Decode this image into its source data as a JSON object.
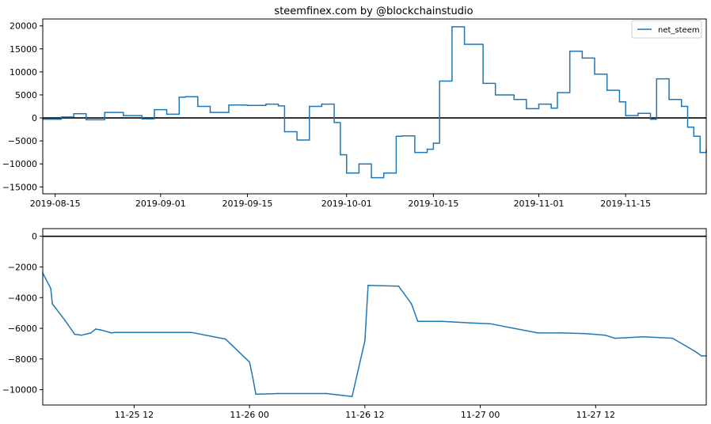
{
  "title": "steemfinex.com by @blockchainstudio",
  "colors": {
    "series": "#1f77b4",
    "zero_line": "#000000",
    "axes": "#000000",
    "background": "#ffffff"
  },
  "chart_data": [
    {
      "type": "line",
      "title": "steemfinex.com by @blockchainstudio",
      "xlabel": "",
      "ylabel": "",
      "x_type": "date",
      "xlim": [
        "2019-08-13",
        "2019-11-28"
      ],
      "ylim": [
        -16500,
        21500
      ],
      "grid": false,
      "legend": "top-right",
      "xtick_labels": [
        "2019-08-15",
        "2019-09-01",
        "2019-09-15",
        "2019-10-01",
        "2019-10-15",
        "2019-11-01",
        "2019-11-15"
      ],
      "xticks": [
        "2019-08-15",
        "2019-09-01",
        "2019-09-15",
        "2019-10-01",
        "2019-10-15",
        "2019-11-01",
        "2019-11-15"
      ],
      "ytick_labels": [
        "20000",
        "15000",
        "10000",
        "5000",
        "0",
        "−5000",
        "−10000",
        "−15000"
      ],
      "yticks": [
        20000,
        15000,
        10000,
        5000,
        0,
        -5000,
        -10000,
        -15000
      ],
      "hline": 0,
      "series": [
        {
          "name": "net_steem",
          "x": [
            "2019-08-13",
            "2019-08-16",
            "2019-08-18",
            "2019-08-20",
            "2019-08-23",
            "2019-08-26",
            "2019-08-29",
            "2019-08-31",
            "2019-09-02",
            "2019-09-04",
            "2019-09-05",
            "2019-09-07",
            "2019-09-09",
            "2019-09-12",
            "2019-09-15",
            "2019-09-18",
            "2019-09-20",
            "2019-09-21",
            "2019-09-23",
            "2019-09-25",
            "2019-09-27",
            "2019-09-29",
            "2019-09-30",
            "2019-10-01",
            "2019-10-03",
            "2019-10-05",
            "2019-10-07",
            "2019-10-09",
            "2019-10-10",
            "2019-10-12",
            "2019-10-14",
            "2019-10-15",
            "2019-10-16",
            "2019-10-18",
            "2019-10-20",
            "2019-10-23",
            "2019-10-25",
            "2019-10-28",
            "2019-10-30",
            "2019-11-01",
            "2019-11-03",
            "2019-11-04",
            "2019-11-06",
            "2019-11-08",
            "2019-11-10",
            "2019-11-12",
            "2019-11-14",
            "2019-11-15",
            "2019-11-17",
            "2019-11-19",
            "2019-11-20",
            "2019-11-22",
            "2019-11-24",
            "2019-11-25",
            "2019-11-26",
            "2019-11-27",
            "2019-11-28"
          ],
          "y": [
            -300,
            200,
            900,
            -400,
            1200,
            500,
            -200,
            1800,
            800,
            4500,
            4600,
            2500,
            1200,
            2800,
            2700,
            3000,
            2600,
            -3000,
            -4800,
            2500,
            3000,
            -1000,
            -8000,
            -12000,
            -10000,
            -13000,
            -12000,
            -4000,
            -3900,
            -7500,
            -6800,
            -5500,
            8000,
            19800,
            16000,
            7500,
            5000,
            4000,
            2000,
            3000,
            2100,
            5500,
            14500,
            13000,
            9500,
            6000,
            3500,
            500,
            1000,
            -300,
            8500,
            4000,
            2500,
            -2000,
            -4000,
            -7500,
            -7000
          ]
        }
      ]
    },
    {
      "type": "line",
      "xlabel": "",
      "ylabel": "",
      "x_type": "datetime",
      "xlim": [
        "2019-11-25 02:30",
        "2019-11-27 23:30"
      ],
      "ylim": [
        -11000,
        500
      ],
      "grid": false,
      "legend": "none",
      "xtick_labels": [
        "11-25 12",
        "11-26 00",
        "11-26 12",
        "11-27 00",
        "11-27 12"
      ],
      "xticks": [
        "2019-11-25 12:00",
        "2019-11-26 00:00",
        "2019-11-26 12:00",
        "2019-11-27 00:00",
        "2019-11-27 12:00"
      ],
      "ytick_labels": [
        "0",
        "−2000",
        "−4000",
        "−6000",
        "−8000",
        "−10000"
      ],
      "yticks": [
        0,
        -2000,
        -4000,
        -6000,
        -8000,
        -10000
      ],
      "hline": 0,
      "series": [
        {
          "name": "net_steem",
          "x": [
            "2019-11-25 02:30",
            "2019-11-25 03:20",
            "2019-11-25 03:30",
            "2019-11-25 04:50",
            "2019-11-25 05:50",
            "2019-11-25 06:00",
            "2019-11-25 06:30",
            "2019-11-25 07:30",
            "2019-11-25 08:00",
            "2019-11-25 08:30",
            "2019-11-25 09:40",
            "2019-11-25 10:00",
            "2019-11-25 18:00",
            "2019-11-25 21:30",
            "2019-11-26 00:00",
            "2019-11-26 00:20",
            "2019-11-26 00:40",
            "2019-11-26 03:00",
            "2019-11-26 08:00",
            "2019-11-26 10:40",
            "2019-11-26 12:00",
            "2019-11-26 12:20",
            "2019-11-26 15:30",
            "2019-11-26 16:50",
            "2019-11-26 17:30",
            "2019-11-26 20:00",
            "2019-11-26 23:00",
            "2019-11-27 01:00",
            "2019-11-27 06:00",
            "2019-11-27 08:30",
            "2019-11-27 11:00",
            "2019-11-27 13:00",
            "2019-11-27 14:00",
            "2019-11-27 17:00",
            "2019-11-27 20:00",
            "2019-11-27 22:20",
            "2019-11-27 23:00",
            "2019-11-27 23:30"
          ],
          "y": [
            -2400,
            -3400,
            -4400,
            -5500,
            -6400,
            -6400,
            -6450,
            -6300,
            -6050,
            -6100,
            -6300,
            -6270,
            -6270,
            -6700,
            -8200,
            -9200,
            -10300,
            -10250,
            -10250,
            -10450,
            -6800,
            -3200,
            -3250,
            -4400,
            -5550,
            -5550,
            -5650,
            -5700,
            -6300,
            -6300,
            -6350,
            -6450,
            -6650,
            -6550,
            -6650,
            -7500,
            -7800,
            -7800
          ]
        }
      ]
    }
  ]
}
